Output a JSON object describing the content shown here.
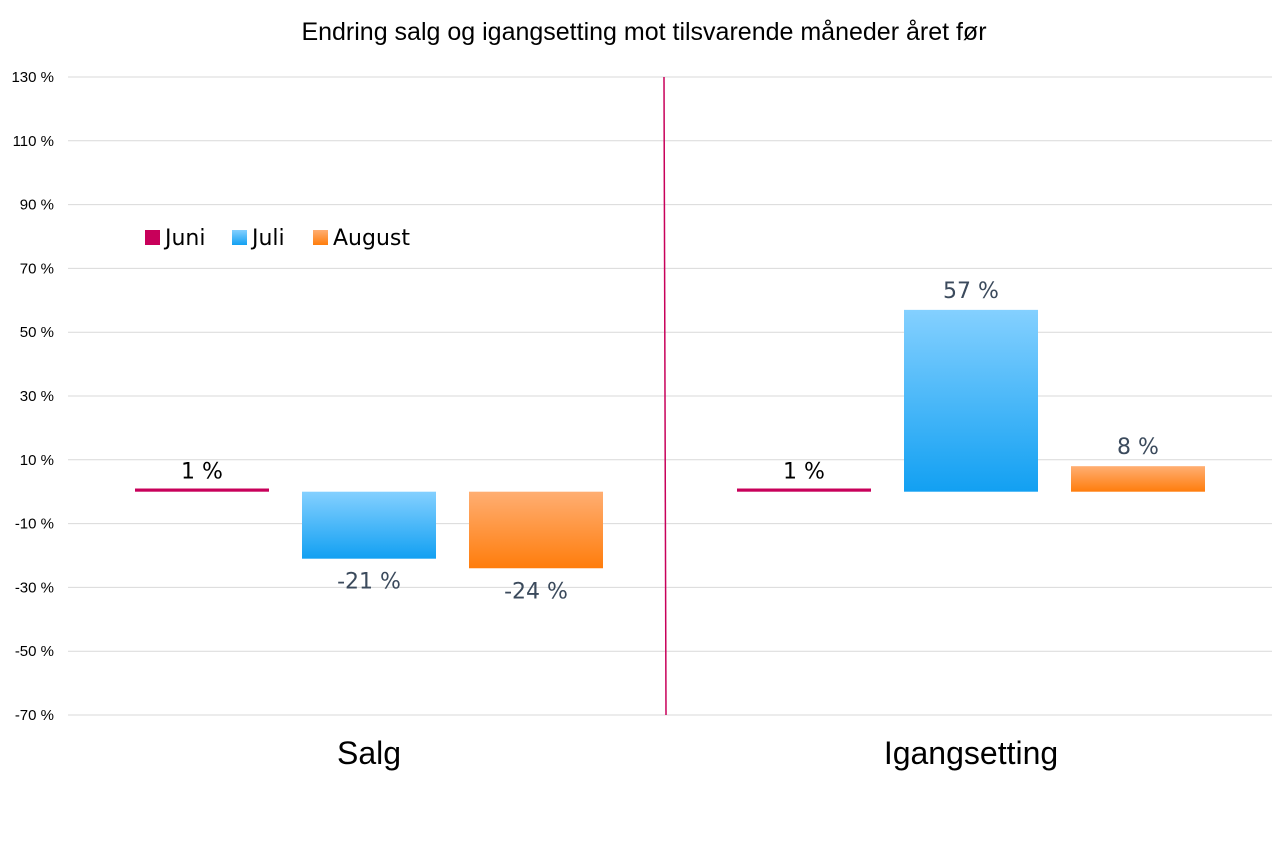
{
  "chart_data": {
    "type": "bar",
    "title": "Endring salg og igangsetting mot tilsvarende måneder året før",
    "xlabel": "",
    "ylabel": "",
    "categories": [
      "Salg",
      "Igangsetting"
    ],
    "series": [
      {
        "name": "Juni",
        "values": [
          1,
          1
        ],
        "labels": [
          "1 %",
          "1 %"
        ],
        "color": "#c8005a"
      },
      {
        "name": "Juli",
        "values": [
          -21,
          57
        ],
        "labels": [
          "-21 %",
          "57 %"
        ],
        "color": "#2aa8f5"
      },
      {
        "name": "August",
        "values": [
          -24,
          8
        ],
        "labels": [
          "-24 %",
          "8 %"
        ],
        "color": "#ff8a2a"
      }
    ],
    "ylim": [
      -70,
      130
    ],
    "yticks": [
      -70,
      -50,
      -30,
      -10,
      10,
      30,
      50,
      70,
      90,
      110,
      130
    ],
    "ytick_labels": [
      "-70 %",
      "-50 %",
      "-30 %",
      "-10 %",
      "10 %",
      "30 %",
      "50 %",
      "70 %",
      "90 %",
      "110 %",
      "130 %"
    ],
    "grid": true,
    "legend_position": "top-left",
    "divider_color": "#c8005a"
  }
}
